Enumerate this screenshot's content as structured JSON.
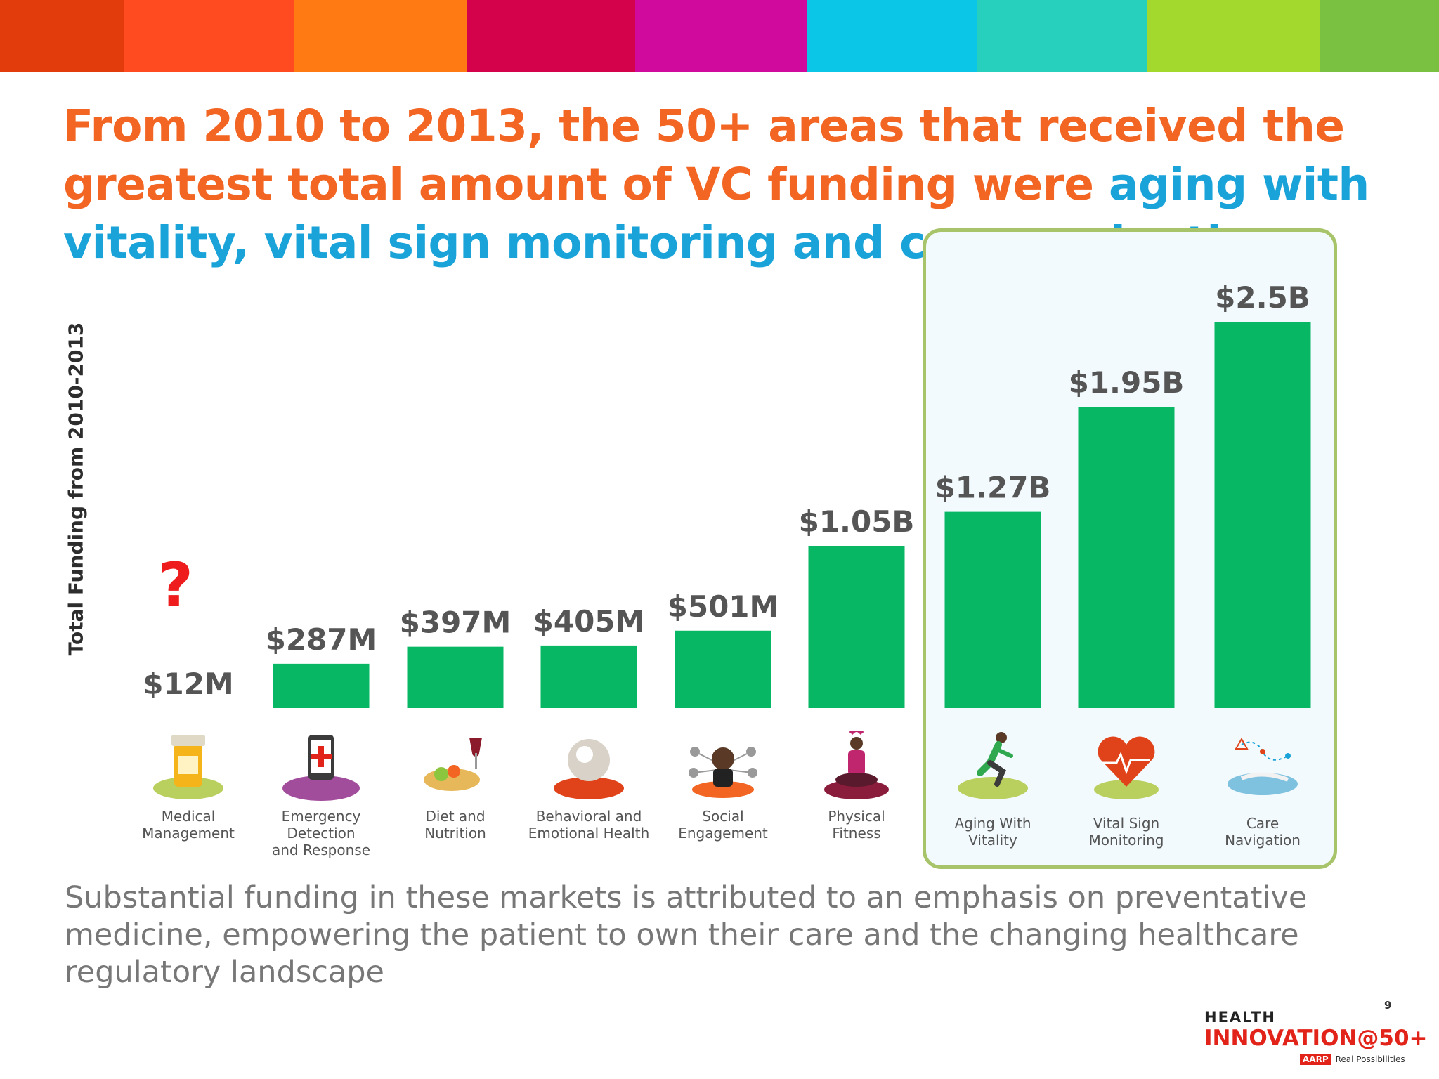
{
  "stripe_colors": [
    "#e23b0c",
    "#ff4b1f",
    "#ff7a12",
    "#d4024a",
    "#cf0a9c",
    "#0bc6e6",
    "#27d0bd",
    "#a3d92d",
    "#7ac142"
  ],
  "title": {
    "part1": "From 2010 to 2013, the 50+ areas that received the greatest total amount of VC funding were ",
    "part2": "aging with vitality, vital sign monitoring and care navigation"
  },
  "question_mark": "?",
  "chart_data": {
    "type": "bar",
    "ylabel": "Total Funding from 2010-2013",
    "xlabel": "",
    "unit": "USD millions",
    "ylim": [
      0,
      2500
    ],
    "bar_color": "#07b763",
    "categories": [
      {
        "line1": "Medical",
        "line2": "Management",
        "value": 12,
        "label": "$12M",
        "icon": "pill-bottle-icon",
        "highlighted": false
      },
      {
        "line1": "Emergency Detection",
        "line2": "and Response",
        "value": 287,
        "label": "$287M",
        "icon": "phone-alert-icon",
        "highlighted": false
      },
      {
        "line1": "Diet and",
        "line2": "Nutrition",
        "value": 397,
        "label": "$397M",
        "icon": "food-plate-icon",
        "highlighted": false
      },
      {
        "line1": "Behavioral and",
        "line2": "Emotional Health",
        "value": 405,
        "label": "$405M",
        "icon": "head-brain-icon",
        "highlighted": false
      },
      {
        "line1": "Social",
        "line2": "Engagement",
        "value": 501,
        "label": "$501M",
        "icon": "social-network-icon",
        "highlighted": false
      },
      {
        "line1": "Physical",
        "line2": "Fitness",
        "value": 1050,
        "label": "$1.05B",
        "icon": "yoga-person-icon",
        "highlighted": false
      },
      {
        "line1": "Aging With",
        "line2": "Vitality",
        "value": 1270,
        "label": "$1.27B",
        "icon": "runner-icon",
        "highlighted": true
      },
      {
        "line1": "Vital Sign",
        "line2": "Monitoring",
        "value": 1950,
        "label": "$1.95B",
        "icon": "heart-pulse-icon",
        "highlighted": true
      },
      {
        "line1": "Care",
        "line2": "Navigation",
        "value": 2500,
        "label": "$2.5B",
        "icon": "map-route-icon",
        "highlighted": true
      }
    ]
  },
  "footnote": "Substantial funding in these markets is attributed to an emphasis on preventative medicine, empowering the patient to own their care and the changing healthcare regulatory landscape",
  "page_number": "9",
  "logo": {
    "line1": "HEALTH",
    "line2": "INNOVATION@50+",
    "brand": "AARP",
    "tagline": "Real Possibilities"
  }
}
